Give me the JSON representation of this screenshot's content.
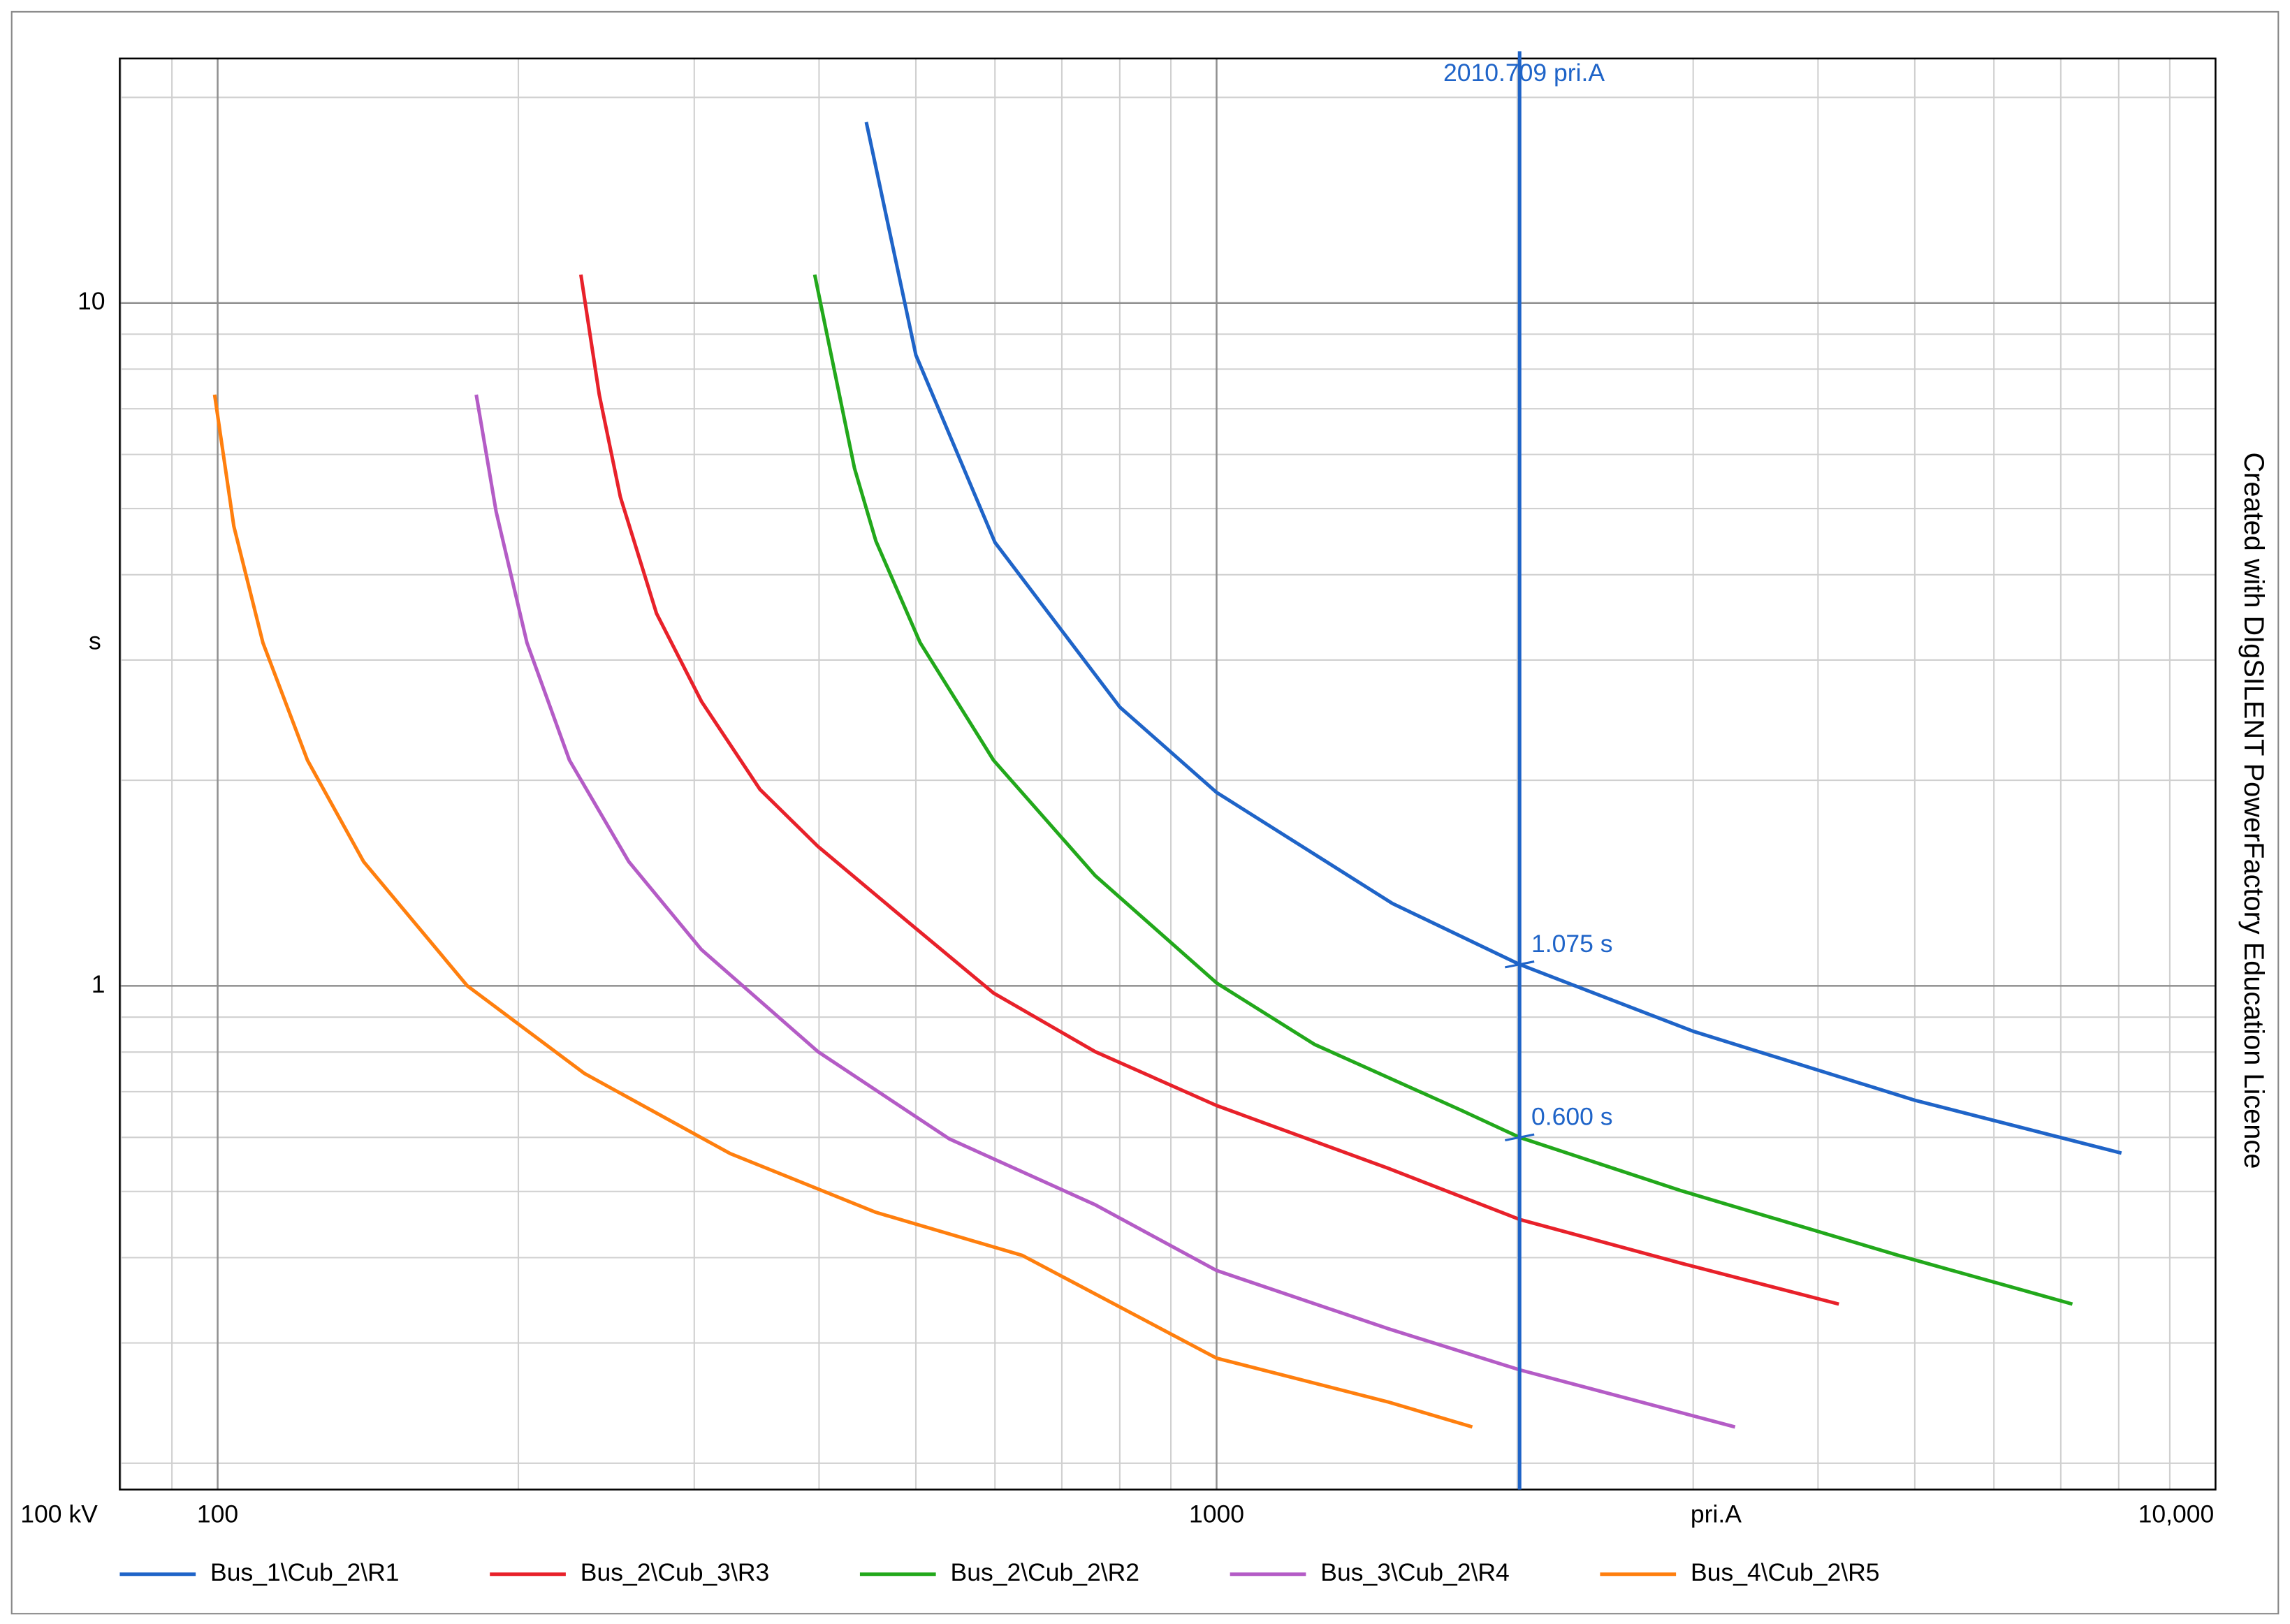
{
  "chart_data": {
    "type": "line",
    "x_label": "pri.A",
    "y_label": "s",
    "corner_label": "100 kV",
    "side_note": "Created with DIgSILENT PowerFactory Education Licence",
    "log_x": true,
    "log_y": true,
    "grid": true,
    "legend": "bottom",
    "xlim": [
      79.8,
      10000
    ],
    "ylim": [
      0.183,
      22.8
    ],
    "xticks": [
      100,
      1000,
      {
        "value": 10000,
        "label": "10,000"
      }
    ],
    "yticks": [
      1,
      10
    ],
    "series": [
      {
        "name": "Bus_1\\Cub_2\\R1",
        "color": "#1f64c8",
        "x": [
          446,
          500,
          600,
          800,
          1000,
          1500,
          2010.709,
          3000,
          5000,
          8050
        ],
        "values": [
          18.4,
          8.39,
          4.46,
          2.56,
          1.92,
          1.32,
          1.075,
          0.858,
          0.68,
          0.569
        ]
      },
      {
        "name": "Bus_2\\Cub_3\\R3",
        "color": "#e8212a",
        "x": [
          231,
          241,
          253,
          275,
          305,
          349,
          399,
          488,
          598,
          756,
          1000,
          1483,
          2010.709,
          2908,
          4197
        ],
        "values": [
          11.0,
          7.34,
          5.2,
          3.51,
          2.61,
          1.94,
          1.6,
          1.25,
          0.976,
          0.801,
          0.668,
          0.541,
          0.455,
          0.393,
          0.342
        ]
      },
      {
        "name": "Bus_2\\Cub_2\\R2",
        "color": "#22a81b",
        "x": [
          396,
          434,
          456,
          505,
          598,
          756,
          1000,
          1253,
          1755,
          2010.709,
          2908,
          4816,
          7190
        ],
        "values": [
          11.0,
          5.73,
          4.48,
          3.18,
          2.14,
          1.45,
          1.01,
          0.821,
          0.658,
          0.6,
          0.502,
          0.403,
          0.342
        ]
      },
      {
        "name": "Bus_3\\Cub_2\\R4",
        "color": "#b45cc6",
        "x": [
          181.5,
          190,
          204,
          225,
          258,
          305,
          399,
          540,
          756,
          1000,
          1483,
          2010.709,
          3304
        ],
        "values": [
          7.34,
          4.95,
          3.18,
          2.14,
          1.52,
          1.13,
          0.801,
          0.597,
          0.478,
          0.383,
          0.315,
          0.274,
          0.226
        ]
      },
      {
        "name": "Bus_4\\Cub_2\\R5",
        "color": "#ff7f0e",
        "x": [
          99.3,
          103.8,
          111,
          123,
          140,
          177.8,
          233,
          326,
          456,
          639,
          1000,
          1483,
          1803
        ],
        "values": [
          7.34,
          4.71,
          3.18,
          2.14,
          1.52,
          1.0,
          0.744,
          0.568,
          0.466,
          0.403,
          0.285,
          0.246,
          0.226
        ]
      }
    ],
    "cursor": {
      "color": "#1f64c8",
      "x": {
        "value": 2010.709,
        "label": "2010.709 pri.A"
      },
      "points": [
        {
          "value": 1.075,
          "label": "1.075 s"
        },
        {
          "value": 0.6,
          "label": "0.600 s"
        }
      ]
    }
  }
}
